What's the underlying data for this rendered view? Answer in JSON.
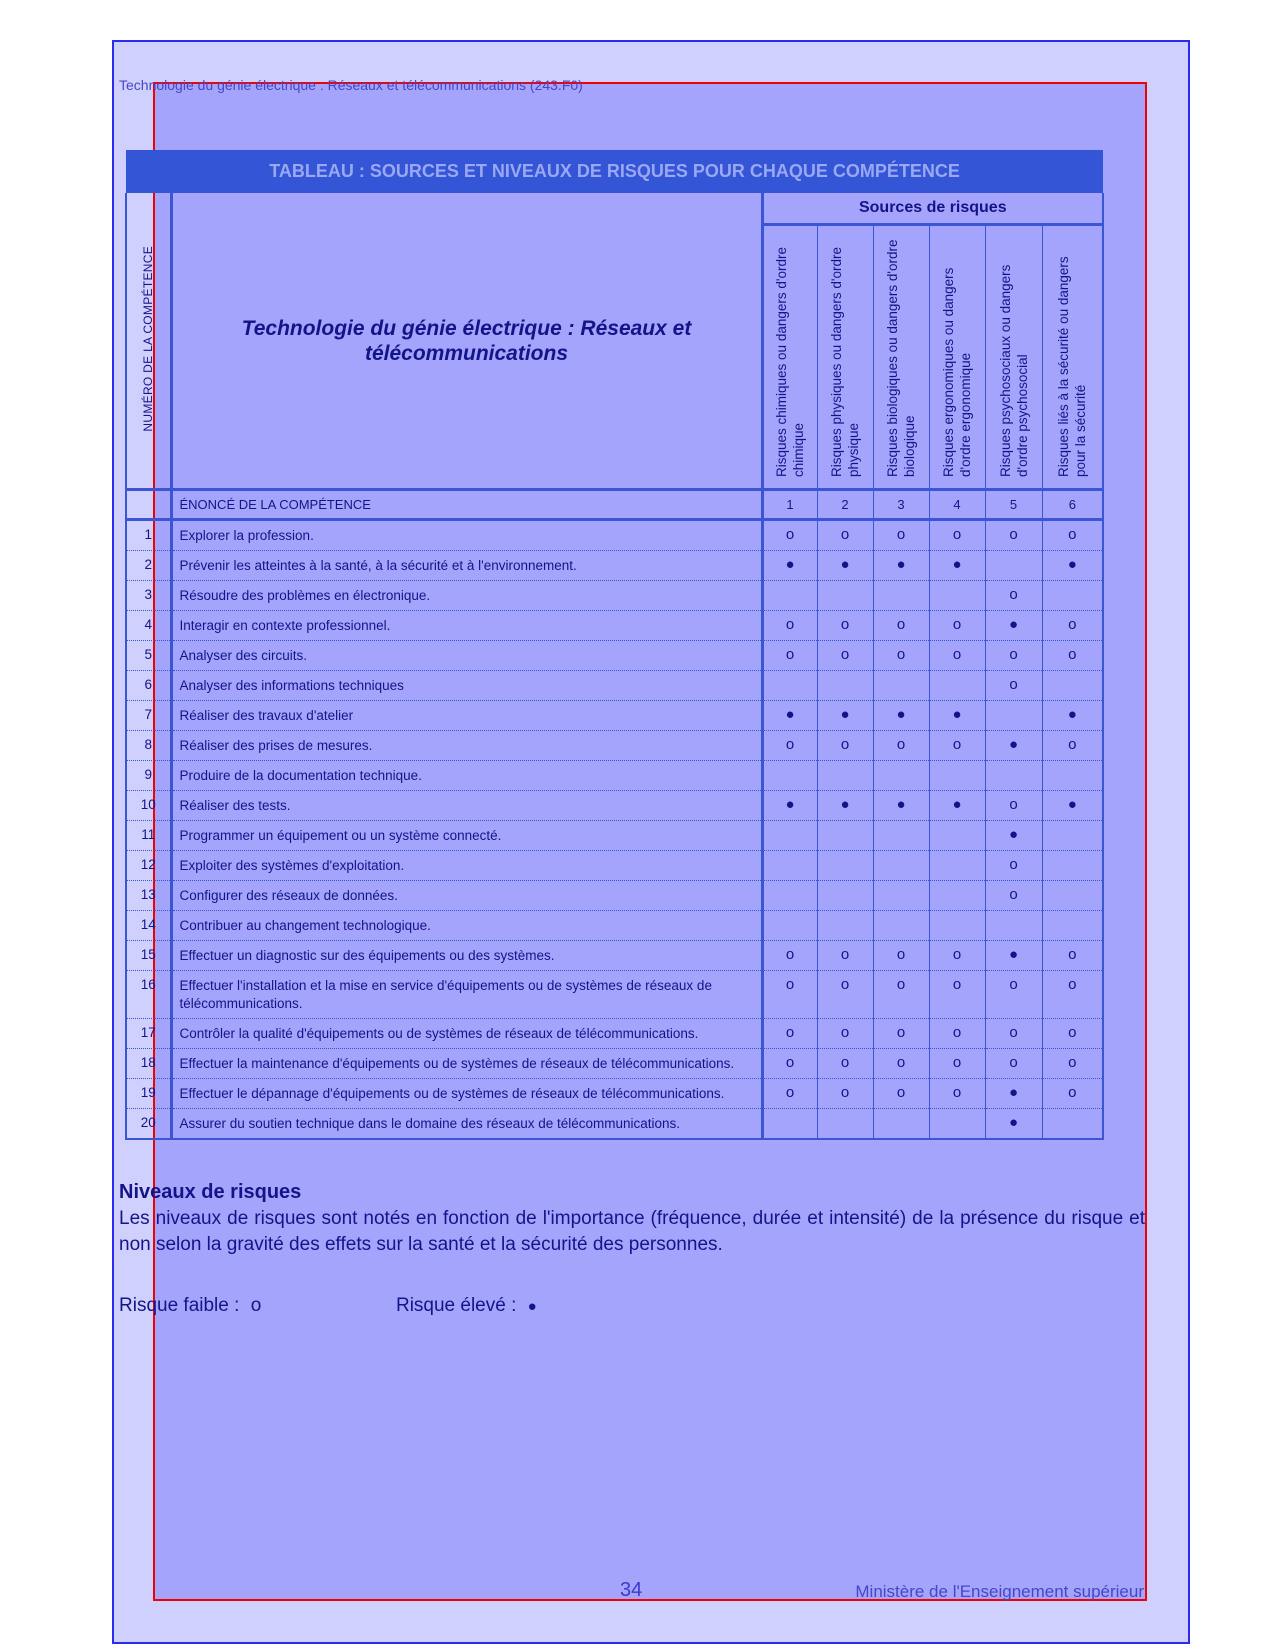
{
  "running_header": "Technologie du génie électrique : Réseaux et télécommunications (243.F0)",
  "table": {
    "title": "TABLEAU : SOURCES ET NIVEAUX DE RISQUES POUR CHAQUE COMPÉTENCE",
    "program_title": "Technologie du génie électrique : Réseaux et télécommunications",
    "number_header": "NUMÉRO DE LA COMPÉTENCE",
    "statement_header": "ÉNONCÉ DE LA COMPÉTENCE",
    "sources_header": "Sources de risques",
    "risk_columns": [
      {
        "num": "1",
        "label": "Risques chimiques ou dangers d'ordre chimique"
      },
      {
        "num": "2",
        "label": "Risques physiques ou dangers d'ordre physique"
      },
      {
        "num": "3",
        "label": "Risques biologiques ou dangers d'ordre biologique"
      },
      {
        "num": "4",
        "label": "Risques ergonomiques ou dangers d'ordre ergonomique"
      },
      {
        "num": "5",
        "label": "Risques psychosociaux ou dangers d'ordre psychosocial"
      },
      {
        "num": "6",
        "label": "Risques liés à la sécurité ou dangers pour la sécurité"
      }
    ],
    "rows": [
      {
        "num": "1",
        "text": "Explorer la profession.",
        "levels": [
          "o",
          "o",
          "o",
          "o",
          "o",
          "o"
        ]
      },
      {
        "num": "2",
        "text": "Prévenir les atteintes à la santé, à la sécurité et à l'environnement.",
        "levels": [
          "●",
          "●",
          "●",
          "●",
          "",
          "●"
        ]
      },
      {
        "num": "3",
        "text": "Résoudre des problèmes en électronique.",
        "levels": [
          "",
          "",
          "",
          "",
          "o",
          ""
        ]
      },
      {
        "num": "4",
        "text": "Interagir en contexte professionnel.",
        "levels": [
          "o",
          "o",
          "o",
          "o",
          "●",
          "o"
        ]
      },
      {
        "num": "5",
        "text": "Analyser des circuits.",
        "levels": [
          "o",
          "o",
          "o",
          "o",
          "o",
          "o"
        ]
      },
      {
        "num": "6",
        "text": "Analyser des informations techniques",
        "levels": [
          "",
          "",
          "",
          "",
          "o",
          ""
        ]
      },
      {
        "num": "7",
        "text": "Réaliser des travaux d'atelier",
        "levels": [
          "●",
          "●",
          "●",
          "●",
          "",
          "●"
        ]
      },
      {
        "num": "8",
        "text": "Réaliser des prises de mesures.",
        "levels": [
          "o",
          "o",
          "o",
          "o",
          "●",
          "o"
        ]
      },
      {
        "num": "9",
        "text": "Produire de la documentation technique.",
        "levels": [
          "",
          "",
          "",
          "",
          "",
          ""
        ]
      },
      {
        "num": "10",
        "text": "Réaliser des tests.",
        "levels": [
          "●",
          "●",
          "●",
          "●",
          "o",
          "●"
        ]
      },
      {
        "num": "11",
        "text": "Programmer un équipement ou un système connecté.",
        "levels": [
          "",
          "",
          "",
          "",
          "●",
          ""
        ]
      },
      {
        "num": "12",
        "text": "Exploiter des systèmes d'exploitation.",
        "levels": [
          "",
          "",
          "",
          "",
          "o",
          ""
        ]
      },
      {
        "num": "13",
        "text": "Configurer des réseaux de données.",
        "levels": [
          "",
          "",
          "",
          "",
          "o",
          ""
        ]
      },
      {
        "num": "14",
        "text": "Contribuer au changement technologique.",
        "levels": [
          "",
          "",
          "",
          "",
          "",
          ""
        ]
      },
      {
        "num": "15",
        "text": "Effectuer un diagnostic sur des équipements ou des systèmes.",
        "levels": [
          "o",
          "o",
          "o",
          "o",
          "●",
          "o"
        ]
      },
      {
        "num": "16",
        "text": "Effectuer l'installation et la mise en service d'équipements ou de systèmes de réseaux de télécommunications.",
        "levels": [
          "o",
          "o",
          "o",
          "o",
          "o",
          "o"
        ]
      },
      {
        "num": "17",
        "text": "Contrôler la qualité d'équipements ou de systèmes de réseaux de télécommunications.",
        "levels": [
          "o",
          "o",
          "o",
          "o",
          "o",
          "o"
        ]
      },
      {
        "num": "18",
        "text": "Effectuer la maintenance d'équipements ou de systèmes de réseaux de télécommunications.",
        "levels": [
          "o",
          "o",
          "o",
          "o",
          "o",
          "o"
        ]
      },
      {
        "num": "19",
        "text": "Effectuer le dépannage d'équipements ou de systèmes de réseaux de télécommunications.",
        "levels": [
          "o",
          "o",
          "o",
          "o",
          "●",
          "o"
        ]
      },
      {
        "num": "20",
        "text": "Assurer du soutien technique dans le domaine des réseaux de télécommunications.",
        "levels": [
          "",
          "",
          "",
          "",
          "●",
          ""
        ]
      }
    ]
  },
  "levels_section": {
    "title": "Niveaux de risques",
    "paragraph": "Les niveaux de risques sont notés en fonction de l'importance (fréquence, durée et intensité) de la présence du risque et non selon la gravité des effets sur la santé et la sécurité des personnes.",
    "low_label": "Risque faible :",
    "low_symbol": "o",
    "high_label": "Risque élevé :",
    "high_symbol": "●"
  },
  "footer": {
    "page_number": "34",
    "publisher": "Ministère de l'Enseignement supérieur"
  },
  "colors": {
    "title_bar": "#3355d6",
    "border": "#3a56d4",
    "text": "#14148a",
    "page_bg": "#a4a4fc"
  }
}
